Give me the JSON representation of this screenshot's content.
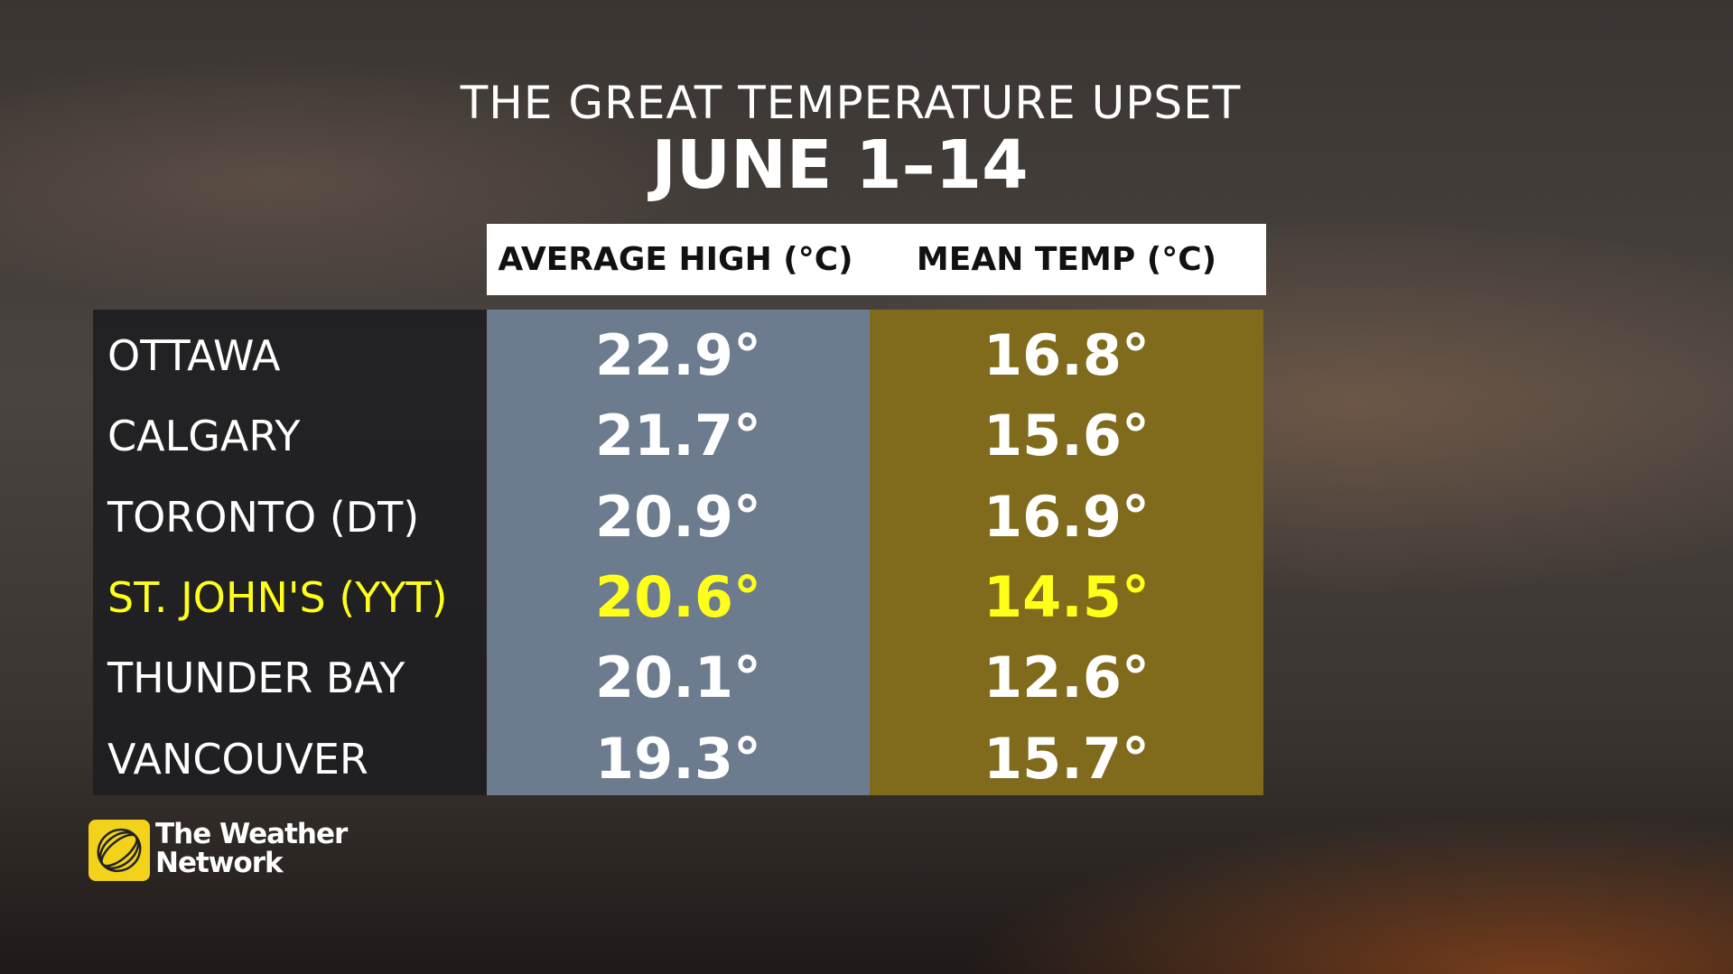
{
  "header": {
    "title": "THE GREAT TEMPERATURE UPSET",
    "subtitle": "JUNE 1–14"
  },
  "table": {
    "columns": [
      "AVERAGE HIGH (°C)",
      "MEAN TEMP (°C)"
    ],
    "rows": [
      [
        "OTTAWA",
        "22.9°",
        "16.8°"
      ],
      [
        "CALGARY",
        "21.7°",
        "15.6°"
      ],
      [
        "TORONTO (DT)",
        "20.9°",
        "16.9°"
      ],
      [
        "ST. JOHN'S (YYT)",
        "20.6°",
        "14.5°"
      ],
      [
        "THUNDER BAY",
        "20.1°",
        "12.6°"
      ],
      [
        "VANCOUVER",
        "19.3°",
        "15.7°"
      ]
    ],
    "highlight_row": 3
  },
  "logo": {
    "lines": [
      "The Weather",
      "Network"
    ]
  }
}
